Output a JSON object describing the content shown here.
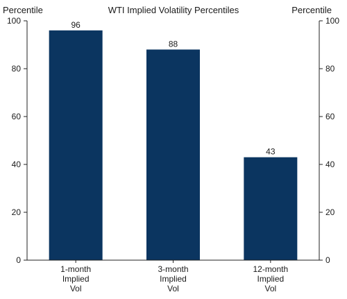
{
  "chart_data": {
    "type": "bar",
    "title": "WTI Implied Volatility Percentiles",
    "ylabel_left": "Percentile",
    "ylabel_right": "Percentile",
    "categories": [
      [
        "1-month",
        "Implied",
        "Vol"
      ],
      [
        "3-month",
        "Implied",
        "Vol"
      ],
      [
        "12-month",
        "Implied",
        "Vol"
      ]
    ],
    "values": [
      96,
      88,
      43
    ],
    "ylim": [
      0,
      100
    ],
    "yticks": [
      0,
      20,
      40,
      60,
      80,
      100
    ],
    "bar_color": "#0b3560",
    "grid": false,
    "legend": "none"
  }
}
